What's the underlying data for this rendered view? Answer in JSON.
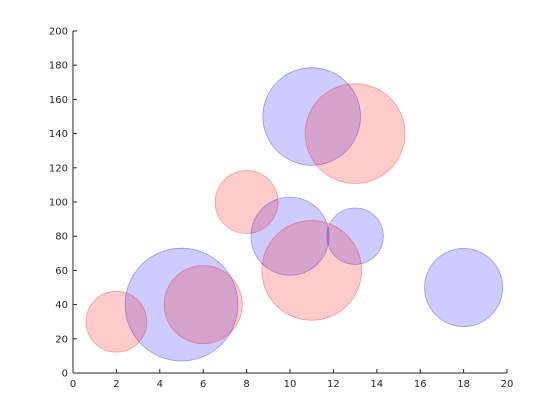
{
  "chart_data": {
    "type": "scatter",
    "title": "",
    "xlabel": "",
    "ylabel": "",
    "xlim": [
      0,
      20
    ],
    "ylim": [
      0,
      200
    ],
    "xticks": [
      0,
      2,
      4,
      6,
      8,
      10,
      12,
      14,
      16,
      18,
      20
    ],
    "yticks": [
      0,
      20,
      40,
      60,
      80,
      100,
      120,
      140,
      160,
      180,
      200
    ],
    "grid": false,
    "legend": "none",
    "series": [
      {
        "color": "#0000ff",
        "fill_opacity": 0.2,
        "points": [
          {
            "x": 5,
            "y": 40,
            "size": 52
          },
          {
            "x": 10,
            "y": 80,
            "size": 36
          },
          {
            "x": 11,
            "y": 150,
            "size": 45
          },
          {
            "x": 13,
            "y": 80,
            "size": 26
          },
          {
            "x": 18,
            "y": 50,
            "size": 36
          }
        ]
      },
      {
        "color": "#ff0000",
        "fill_opacity": 0.2,
        "points": [
          {
            "x": 2,
            "y": 30,
            "size": 28
          },
          {
            "x": 6,
            "y": 40,
            "size": 36
          },
          {
            "x": 8,
            "y": 100,
            "size": 29
          },
          {
            "x": 11,
            "y": 60,
            "size": 46
          },
          {
            "x": 13,
            "y": 140,
            "size": 46
          }
        ]
      }
    ]
  }
}
